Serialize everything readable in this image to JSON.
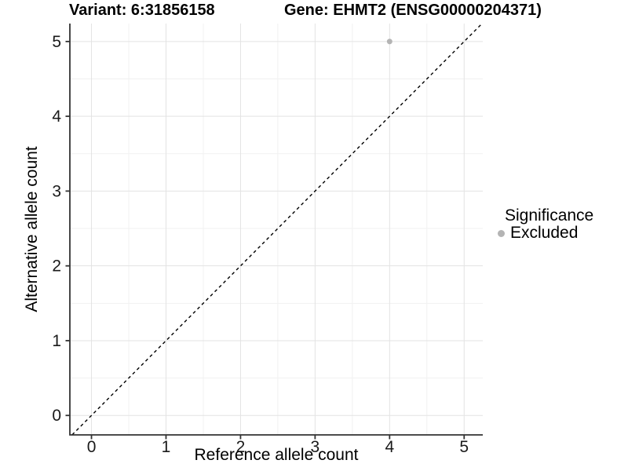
{
  "chart_data": {
    "type": "scatter",
    "title_left": "Variant: 6:31856158",
    "title_right": "Gene: EHMT2 (ENSG00000204371)",
    "xlabel": "Reference allele count",
    "ylabel": "Alternative allele count",
    "xlim": [
      -0.29,
      5.25
    ],
    "ylim": [
      -0.26,
      5.24
    ],
    "x_ticks": [
      0,
      1,
      2,
      3,
      4,
      5
    ],
    "y_ticks": [
      0,
      1,
      2,
      3,
      4,
      5
    ],
    "minor_grid_positions": [
      0.5,
      1.5,
      2.5,
      3.5,
      4.5
    ],
    "grid": "major and minor, on",
    "identity_line": {
      "equation": "y = x",
      "style": "dashed",
      "color": "#000000"
    },
    "points": [
      {
        "x": 4,
        "y": 5,
        "series": "Excluded"
      }
    ],
    "series": [
      {
        "name": "Excluded",
        "color": "#b4b4b4"
      }
    ],
    "legend": {
      "position": "right",
      "title": "Significance",
      "entries": [
        {
          "label": "Excluded",
          "color": "#b4b4b4"
        }
      ]
    },
    "colors": {
      "background": "#ffffff",
      "major_grid": "#e3e3e3",
      "minor_grid": "#f1f1f1",
      "axis_line": "#333333",
      "tick_mark": "#333333",
      "tick_text": "#1a1a1a",
      "point": "#b4b4b4"
    }
  }
}
